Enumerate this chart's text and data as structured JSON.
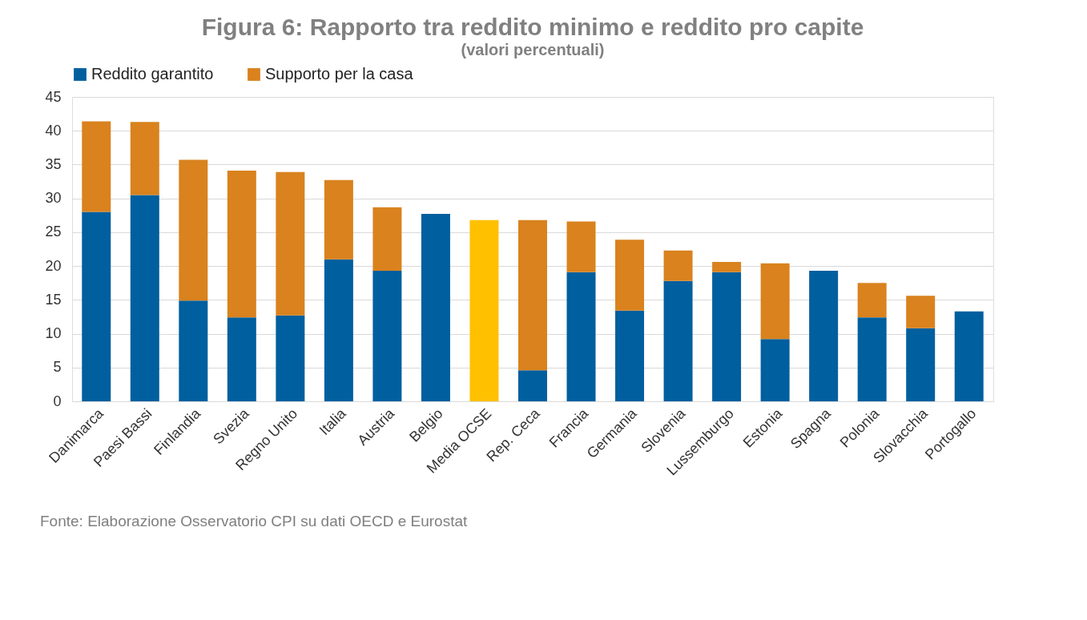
{
  "chart_data": {
    "type": "bar",
    "stacked": true,
    "title": "Figura 6: Rapporto tra reddito minimo e reddito pro capite",
    "subtitle": "(valori percentuali)",
    "categories": [
      "Danimarca",
      "Paesi Bassi",
      "Finlandia",
      "Svezia",
      "Regno Unito",
      "Italia",
      "Austria",
      "Belgio",
      "Media OCSE",
      "Rep. Ceca",
      "Francia",
      "Germania",
      "Slovenia",
      "Lussemburgo",
      "Estonia",
      "Spagna",
      "Polonia",
      "Slovacchia",
      "Portogallo"
    ],
    "series": [
      {
        "name": "Reddito garantito",
        "color": "#005f9e",
        "colors": [
          "#005f9e",
          "#005f9e",
          "#005f9e",
          "#005f9e",
          "#005f9e",
          "#005f9e",
          "#005f9e",
          "#005f9e",
          "#ffc000",
          "#005f9e",
          "#005f9e",
          "#005f9e",
          "#005f9e",
          "#005f9e",
          "#005f9e",
          "#005f9e",
          "#005f9e",
          "#005f9e",
          "#005f9e"
        ],
        "values": [
          28.0,
          30.5,
          14.9,
          12.4,
          12.7,
          21.0,
          19.3,
          27.7,
          26.8,
          4.6,
          19.1,
          13.4,
          17.8,
          19.1,
          9.2,
          19.3,
          12.4,
          10.8,
          13.3
        ]
      },
      {
        "name": "Supporto per la casa",
        "color": "#d9821e",
        "values": [
          13.4,
          10.8,
          20.8,
          21.7,
          21.2,
          11.7,
          9.4,
          null,
          null,
          22.2,
          7.5,
          10.5,
          4.5,
          1.5,
          11.2,
          null,
          5.1,
          4.8,
          null
        ]
      }
    ],
    "ylim": [
      0,
      45
    ],
    "yticks": [
      0,
      5,
      10,
      15,
      20,
      25,
      30,
      35,
      40,
      45
    ],
    "grid": "y",
    "legend": "top",
    "annotations": [
      "Fonte: Elaborazione Osservatorio CPI su dati OECD e Eurostat"
    ]
  }
}
